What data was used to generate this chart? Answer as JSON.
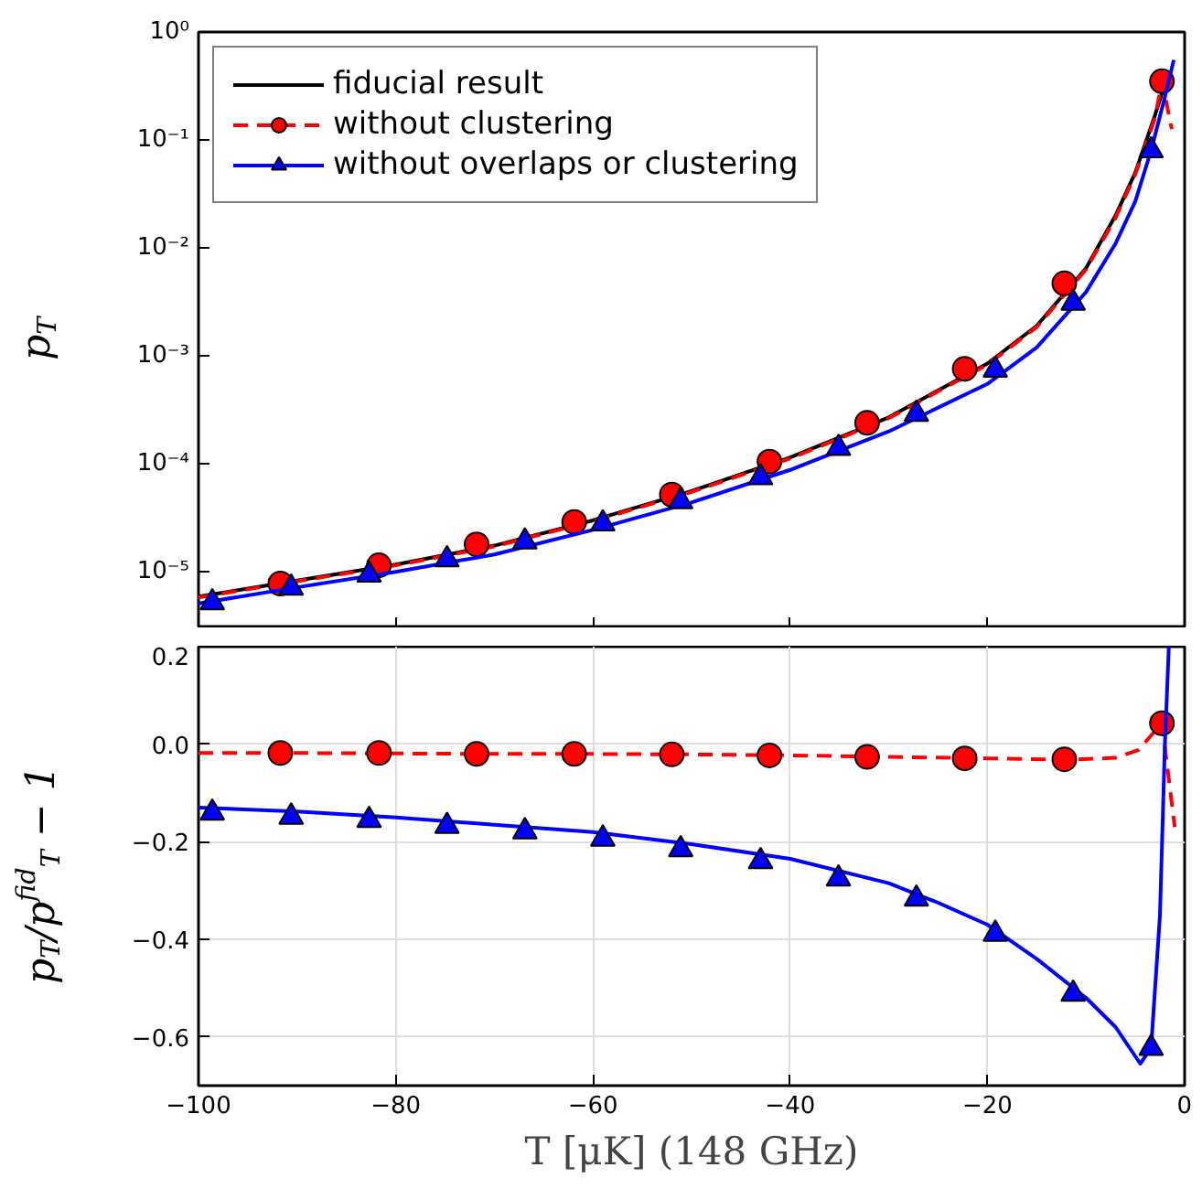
{
  "chart_data": [
    {
      "type": "line",
      "ylabel": "p$_{T}$",
      "xlim": [
        -100,
        0
      ],
      "ylim": [
        3e-06,
        1
      ],
      "log": "y",
      "grid": false,
      "legend": "top left",
      "tick_labels": "y",
      "xticks": [
        -100,
        -80,
        -60,
        -40,
        -20,
        0
      ],
      "yticks": [
        {
          "value": 1e-05,
          "label": "10⁻⁵"
        },
        {
          "value": 0.0001,
          "label": "10⁻⁴"
        },
        {
          "value": 0.001,
          "label": "10⁻³"
        },
        {
          "value": 0.01,
          "label": "10⁻²"
        },
        {
          "value": 0.1,
          "label": "10⁻¹"
        },
        {
          "value": 1,
          "label": "10⁰"
        }
      ],
      "series": [
        {
          "name": "fiducial result",
          "type": "line",
          "color": "#000000",
          "line_style": "solid",
          "marker": "none",
          "x": [
            -100,
            -90,
            -80,
            -70,
            -60,
            -50,
            -40,
            -30,
            -20,
            -15,
            -10,
            -7,
            -5,
            -3,
            -2,
            -1.5
          ],
          "values": [
            5.9e-06,
            8.3e-06,
            1.17e-05,
            1.75e-05,
            3e-05,
            5.6e-05,
            0.000115,
            0.00027,
            0.00085,
            0.0019,
            0.0065,
            0.02,
            0.05,
            0.17,
            0.33,
            0.4
          ]
        },
        {
          "type": "line",
          "color": "#ff0000",
          "line_style": "dashed",
          "marker": "none",
          "x": [
            -100,
            -90,
            -80,
            -70,
            -60,
            -50,
            -40,
            -30,
            -20,
            -15,
            -10,
            -7,
            -5,
            -3,
            -2.3,
            -1.3
          ],
          "values": [
            5.8e-06,
            8.2e-06,
            1.15e-05,
            1.72e-05,
            2.95e-05,
            5.5e-05,
            0.000112,
            0.000265,
            0.00083,
            0.00185,
            0.0063,
            0.019,
            0.048,
            0.16,
            0.35,
            0.126
          ]
        },
        {
          "name": "without clustering",
          "type": "scatter",
          "color": "#ff0000",
          "marker": "circle",
          "x": [
            -91.7,
            -81.7,
            -71.8,
            -61.9,
            -52.0,
            -42.1,
            -32.2,
            -22.3,
            -12.2,
            -2.3
          ],
          "values": [
            7.8e-06,
            1.15e-05,
            1.8e-05,
            2.9e-05,
            5.2e-05,
            0.000105,
            0.00024,
            0.00076,
            0.0047,
            0.35
          ]
        },
        {
          "type": "line",
          "color": "#0000ff",
          "line_style": "solid",
          "marker": "none",
          "x": [
            -100,
            -90,
            -80,
            -70,
            -60,
            -50,
            -40,
            -30,
            -20,
            -15,
            -10,
            -7,
            -5,
            -3.4,
            -2,
            -1.1
          ],
          "values": [
            5.1e-06,
            7.2e-06,
            1e-05,
            1.45e-05,
            2.45e-05,
            4.4e-05,
            8.8e-05,
            0.0002,
            0.00055,
            0.0012,
            0.0039,
            0.011,
            0.027,
            0.08,
            0.25,
            0.55
          ]
        },
        {
          "name": "without overlaps or clustering",
          "type": "scatter",
          "color": "#0000ff",
          "marker": "triangle",
          "x": [
            -98.6,
            -90.6,
            -82.7,
            -74.8,
            -66.9,
            -59.0,
            -51.1,
            -43.0,
            -35.1,
            -27.2,
            -19.2,
            -11.3,
            -3.4
          ],
          "values": [
            5.2e-06,
            7.1e-06,
            9.4e-06,
            1.3e-05,
            1.9e-05,
            2.8e-05,
            4.5e-05,
            7.5e-05,
            0.00014,
            0.00029,
            0.00074,
            0.0031,
            0.08
          ]
        }
      ]
    },
    {
      "type": "line",
      "ylabel": "p$_{T}$/p$^{fid}$$_{T}$ − 1",
      "xlabel": "T [μK] (148 GHz)",
      "xlim": [
        -100,
        0
      ],
      "ylim": [
        -0.7,
        0.2
      ],
      "grid": true,
      "xticks": [
        {
          "value": -100,
          "label": "−100"
        },
        {
          "value": -80,
          "label": "−80"
        },
        {
          "value": -60,
          "label": "−60"
        },
        {
          "value": -40,
          "label": "−40"
        },
        {
          "value": -20,
          "label": "−20"
        },
        0
      ],
      "yticks": [
        {
          "value": -0.6,
          "label": "−0.6"
        },
        {
          "value": -0.4,
          "label": "−0.4"
        },
        {
          "value": -0.2,
          "label": "−0.2"
        },
        {
          "value": 0,
          "label": "0.0"
        },
        0.2
      ],
      "series": [
        {
          "type": "line",
          "color": "#ff0000",
          "line_style": "dashed",
          "marker": "none",
          "x": [
            -100,
            -90,
            -80,
            -70,
            -60,
            -50,
            -40,
            -30,
            -20,
            -12,
            -7,
            -4.7,
            -2.3,
            -1.0
          ],
          "values": [
            -0.018,
            -0.018,
            -0.019,
            -0.02,
            -0.02,
            -0.021,
            -0.023,
            -0.026,
            -0.029,
            -0.032,
            -0.028,
            -0.012,
            0.043,
            -0.17
          ]
        },
        {
          "type": "scatter",
          "color": "#ff0000",
          "marker": "circle",
          "x": [
            -91.7,
            -81.7,
            -71.8,
            -61.9,
            -52.0,
            -42.1,
            -32.2,
            -22.3,
            -12.2,
            -2.3
          ],
          "values": [
            -0.018,
            -0.018,
            -0.02,
            -0.02,
            -0.021,
            -0.023,
            -0.026,
            -0.029,
            -0.031,
            0.043
          ]
        },
        {
          "type": "line",
          "color": "#0000ff",
          "line_style": "solid",
          "marker": "none",
          "x": [
            -100,
            -90,
            -80,
            -70,
            -60,
            -50,
            -40,
            -30,
            -25,
            -20,
            -15,
            -10,
            -7,
            -4.5,
            -3.4,
            -2.5,
            -2.0,
            -1.6
          ],
          "values": [
            -0.13,
            -0.138,
            -0.15,
            -0.165,
            -0.18,
            -0.205,
            -0.235,
            -0.285,
            -0.325,
            -0.37,
            -0.44,
            -0.52,
            -0.58,
            -0.655,
            -0.623,
            -0.35,
            0.0,
            0.2
          ]
        },
        {
          "type": "scatter",
          "color": "#0000ff",
          "marker": "triangle",
          "x": [
            -98.6,
            -90.6,
            -82.7,
            -74.8,
            -66.9,
            -59.0,
            -51.1,
            -43.0,
            -35.1,
            -27.2,
            -19.2,
            -11.3,
            -3.4
          ],
          "values": [
            -0.141,
            -0.149,
            -0.156,
            -0.168,
            -0.179,
            -0.194,
            -0.216,
            -0.24,
            -0.276,
            -0.317,
            -0.389,
            -0.512,
            -0.623
          ]
        }
      ]
    }
  ]
}
